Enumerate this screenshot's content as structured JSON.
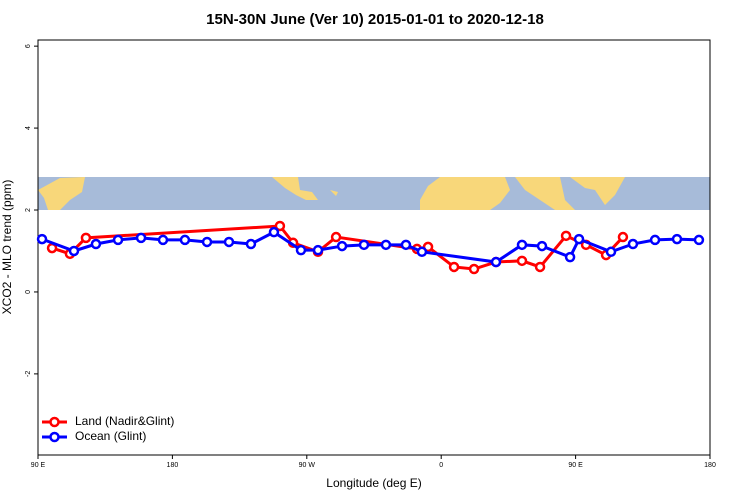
{
  "chart_data": {
    "type": "line",
    "title": "15N-30N June (Ver 10)   2015-01-01 to 2020-12-18",
    "x_label": "Longitude (deg E)",
    "y_label": "XCO2 - MLO trend (ppm)",
    "xlim": [
      90,
      540
    ],
    "ylim": [
      -3.98,
      6.15
    ],
    "xticks": [
      {
        "value": 90,
        "label": "90 E"
      },
      {
        "value": 180,
        "label": "180"
      },
      {
        "value": 270,
        "label": "90 W"
      },
      {
        "value": 360,
        "label": "0"
      },
      {
        "value": 450,
        "label": "90 E"
      },
      {
        "value": 540,
        "label": "180"
      }
    ],
    "yticks": [
      -2,
      0,
      2,
      4,
      6
    ],
    "legend": "bottom-left",
    "series": [
      {
        "name": "Land (Nadir&Glint)",
        "color": "#ff0000",
        "x": [
          99.4,
          111.4,
          122.1,
          252,
          260.8,
          277.5,
          289.6,
          343.8,
          351.2,
          368.6,
          382,
          396.7,
          414.1,
          426.2,
          443.6,
          457,
          470.4,
          481.7
        ],
        "values": [
          1.07,
          0.93,
          1.32,
          1.61,
          1.2,
          0.98,
          1.34,
          1.05,
          1.1,
          0.61,
          0.56,
          0.73,
          0.76,
          0.61,
          1.37,
          1.15,
          0.9,
          1.34
        ]
      },
      {
        "name": "Ocean (Glint)",
        "color": "#0000ff",
        "x": [
          92.7,
          114.1,
          128.8,
          143.6,
          159,
          173.7,
          188.4,
          203.2,
          217.9,
          232.6,
          248,
          266.1,
          277.5,
          293.6,
          308.3,
          323,
          336.4,
          347.1,
          396.7,
          414.1,
          427.5,
          446.3,
          452.3,
          473.7,
          488.4,
          503.2,
          517.9,
          532.6
        ],
        "values": [
          1.29,
          1.0,
          1.17,
          1.27,
          1.32,
          1.27,
          1.27,
          1.22,
          1.22,
          1.17,
          1.46,
          1.02,
          1.02,
          1.12,
          1.15,
          1.15,
          1.15,
          0.98,
          0.73,
          1.15,
          1.12,
          0.85,
          1.29,
          0.98,
          1.17,
          1.27,
          1.29,
          1.27
        ]
      }
    ]
  }
}
